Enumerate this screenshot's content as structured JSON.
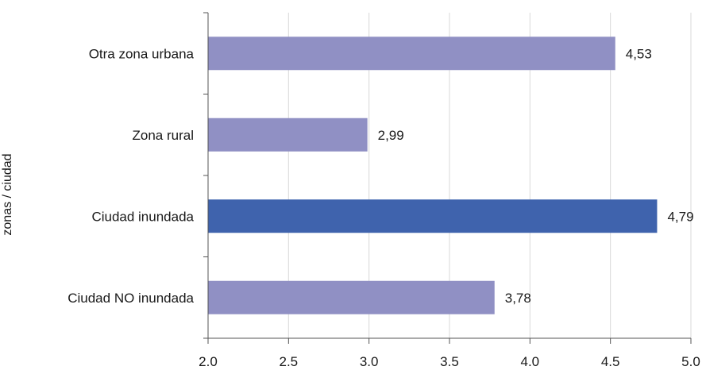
{
  "chart_data": {
    "type": "bar",
    "orientation": "horizontal",
    "title": "",
    "xlabel": "",
    "ylabel": "zonas / ciudad",
    "xlim": [
      2.0,
      5.0
    ],
    "x_ticks": [
      "2.0",
      "2.5",
      "3.0",
      "3.5",
      "4.0",
      "4.5",
      "5.0"
    ],
    "grid": "vertical",
    "categories": [
      "Otra zona urbana",
      "Zona rural",
      "Ciudad inundada",
      "Ciudad NO inundada"
    ],
    "values": [
      4.53,
      2.99,
      4.79,
      3.78
    ],
    "value_labels": [
      "4,53",
      "2,99",
      "4,79",
      "3,78"
    ],
    "bar_colors": [
      "#9090c4",
      "#9090c4",
      "#3f63ad",
      "#9090c4"
    ],
    "colors": {
      "axis": "#555555",
      "grid": "#d9d9d9",
      "text": "#1a1a1a"
    }
  }
}
